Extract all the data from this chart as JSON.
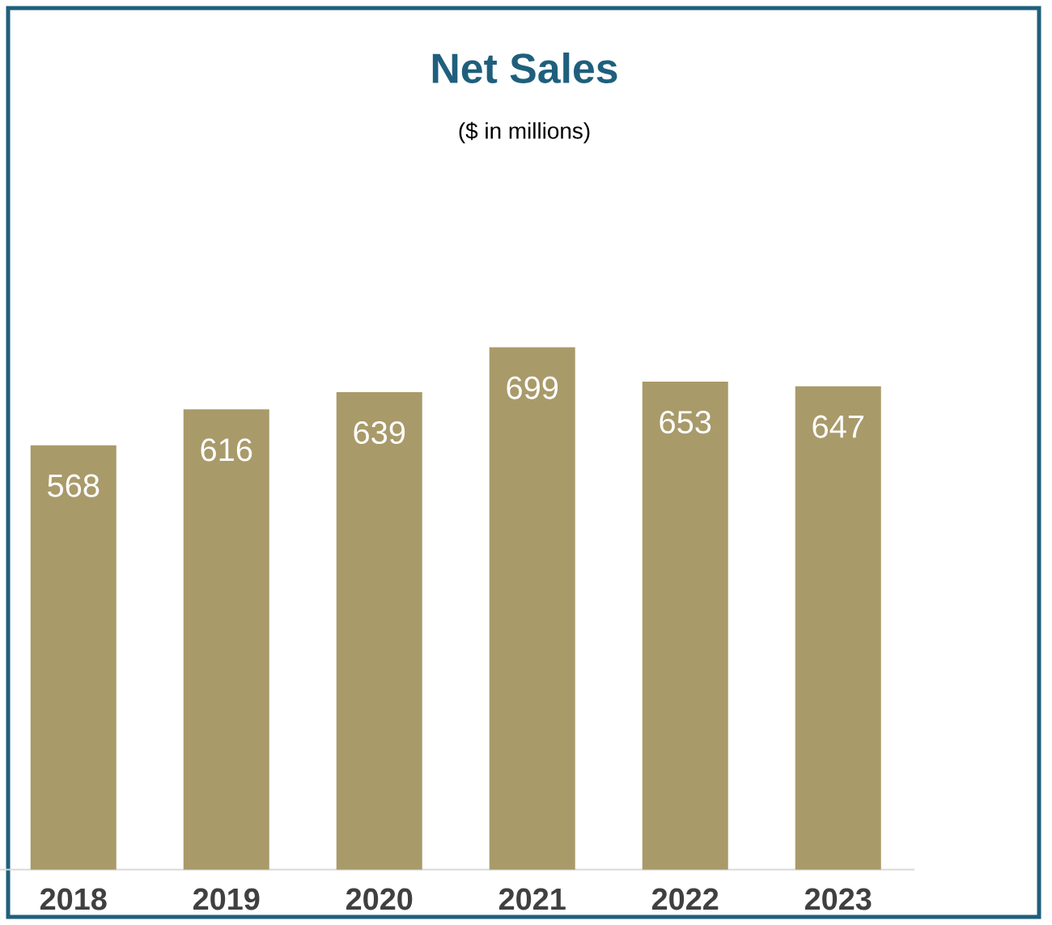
{
  "chart_data": {
    "type": "bar",
    "title": "Net Sales",
    "subtitle": "($ in millions)",
    "categories": [
      "2018",
      "2019",
      "2020",
      "2021",
      "2022",
      "2023"
    ],
    "values": [
      568,
      616,
      639,
      699,
      653,
      647
    ],
    "color": "#a99a6a",
    "data_labels": true
  }
}
